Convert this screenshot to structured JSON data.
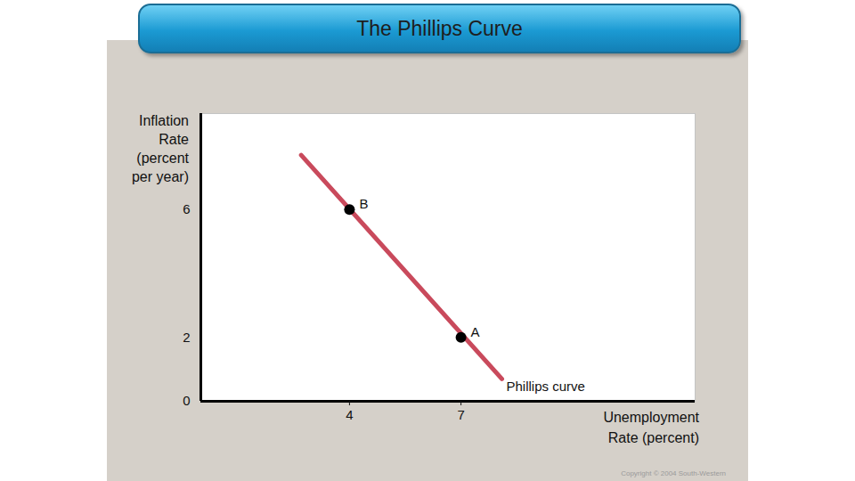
{
  "chart_data": {
    "type": "line",
    "title": "The Phillips Curve",
    "x_label": "Unemployment Rate (percent)",
    "y_label": "Inflation Rate (percent per year)",
    "series": [
      {
        "name": "Phillips curve",
        "color": "#c94a5c",
        "x": [
          2.7,
          8.1
        ],
        "values": [
          7.7,
          0.7
        ]
      }
    ],
    "points": [
      {
        "label": "B",
        "x": 4,
        "y": 6
      },
      {
        "label": "A",
        "x": 7,
        "y": 2
      }
    ],
    "xlim": [
      0,
      13.3
    ],
    "ylim": [
      0,
      9
    ],
    "xticks": [
      4,
      7
    ],
    "yticks": [
      0,
      2,
      6
    ],
    "grid": false,
    "caption": "Copyright © 2004 South-Western"
  }
}
